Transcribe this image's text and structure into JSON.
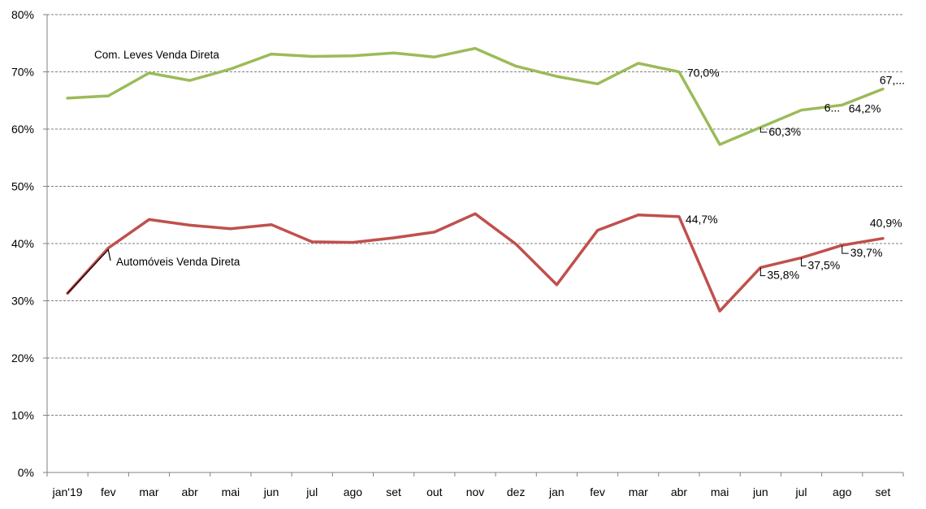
{
  "chart_data": {
    "type": "line",
    "categories": [
      "jan'19",
      "fev",
      "mar",
      "abr",
      "mai",
      "jun",
      "jul",
      "ago",
      "set",
      "out",
      "nov",
      "dez",
      "jan",
      "fev",
      "mar",
      "abr",
      "mai",
      "jun",
      "jul",
      "ago",
      "set"
    ],
    "ylim": [
      0,
      80
    ],
    "yticks": [
      "0%",
      "10%",
      "20%",
      "30%",
      "40%",
      "50%",
      "60%",
      "70%",
      "80%"
    ],
    "grid": true,
    "series": [
      {
        "name": "Com. Leves Venda Direta",
        "color": "#9BBB59",
        "values": [
          65.4,
          65.8,
          69.8,
          68.5,
          70.5,
          73.1,
          72.7,
          72.8,
          73.3,
          72.6,
          74.1,
          71.0,
          69.2,
          67.9,
          71.5,
          70.0,
          57.3,
          60.3,
          63.3,
          64.2,
          67.0
        ],
        "data_labels": [
          {
            "index": 15,
            "text": "70,0%"
          },
          {
            "index": 17,
            "text": "60,3%"
          },
          {
            "index": 19,
            "text": "6..."
          },
          {
            "index": 19,
            "text": "64,2%"
          },
          {
            "index": 20,
            "text": "67,..."
          }
        ]
      },
      {
        "name": "Automóveis Venda Direta",
        "color": "#C0504D",
        "values": [
          31.3,
          39.2,
          44.2,
          43.2,
          42.6,
          43.3,
          40.3,
          40.2,
          41.0,
          42.0,
          45.2,
          39.9,
          32.8,
          42.3,
          45.0,
          44.7,
          28.2,
          35.8,
          37.5,
          39.7,
          40.9
        ],
        "data_labels": [
          {
            "index": 15,
            "text": "44,7%"
          },
          {
            "index": 17,
            "text": "35,8%"
          },
          {
            "index": 18,
            "text": "37,5%"
          },
          {
            "index": 19,
            "text": "39,7%"
          },
          {
            "index": 20,
            "text": "40,9%"
          }
        ]
      }
    ]
  }
}
